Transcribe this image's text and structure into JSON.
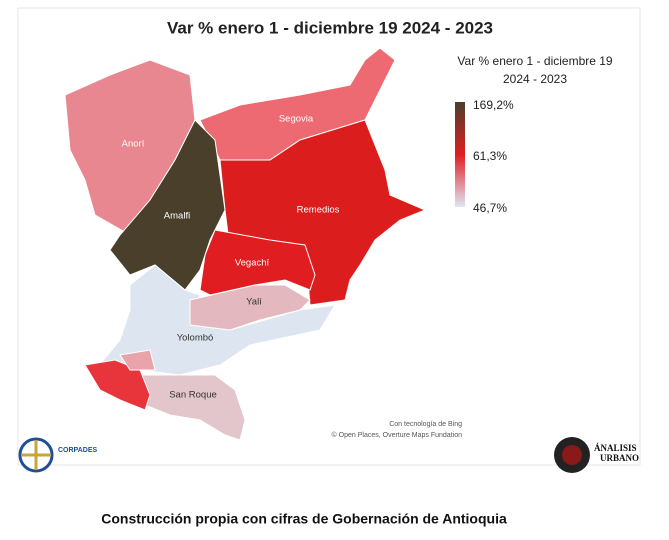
{
  "map": {
    "title": "Var % enero 1 - diciembre 19 2024 - 2023",
    "legend": {
      "title_lines": [
        "Var % enero 1 - diciembre 19",
        "2024 - 2023"
      ],
      "labels": [
        "169,2%",
        "61,3%",
        "46,7%"
      ]
    },
    "regions": [
      "Anorí",
      "Segovia",
      "Amalfi",
      "Remedios",
      "Vegachí",
      "Yalí",
      "Yolombó",
      "San Roque"
    ],
    "attribution": [
      "Con tecnología de Bing",
      "© Open Places, Overture Maps Fundation"
    ],
    "logos": [
      "CORPADES",
      "ÁNALISIS",
      "URBANO"
    ]
  },
  "caption": "Construcción propia con cifras de Gobernación de Antioquia"
}
